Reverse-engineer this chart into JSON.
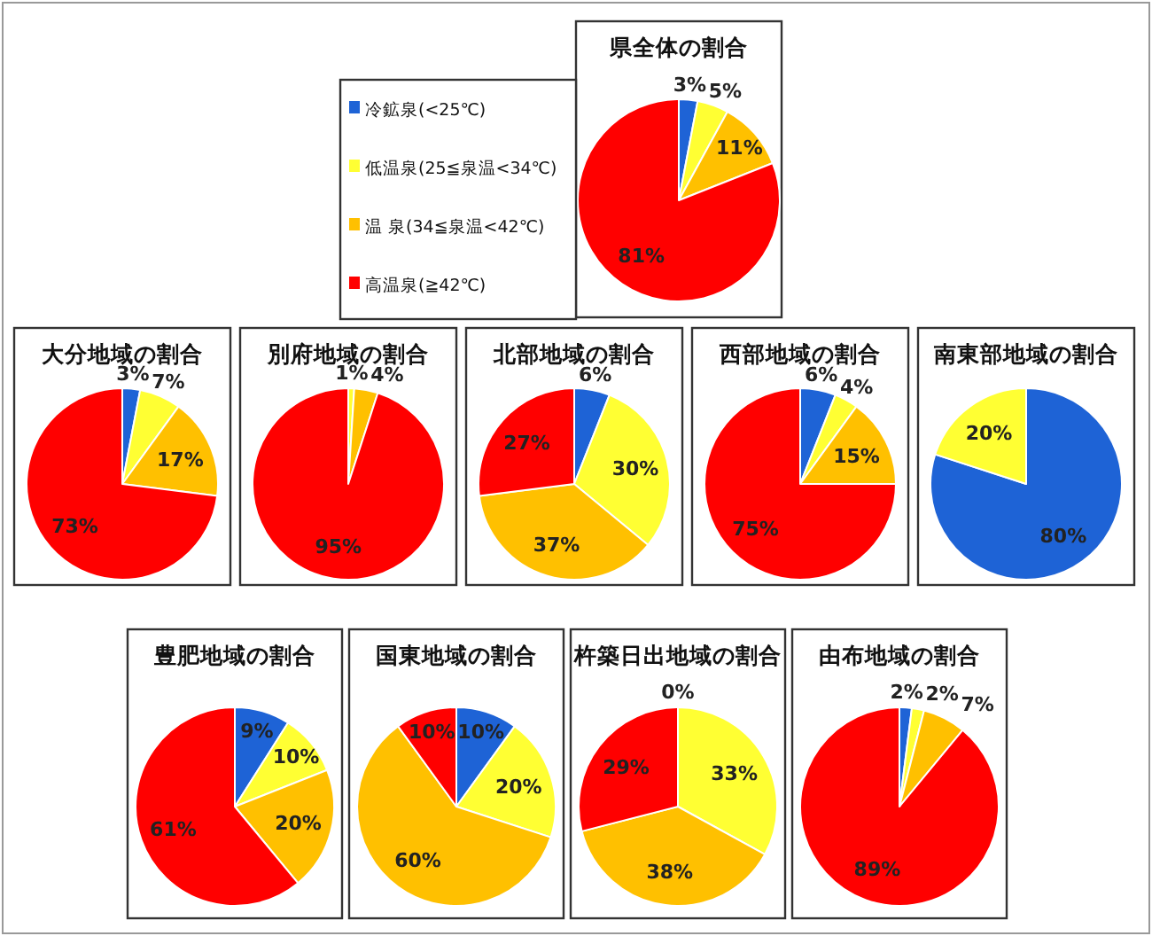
{
  "chart_data": [
    {
      "type": "pie",
      "title": "県全体の割合",
      "categories": [
        "冷鉱泉(<25℃)",
        "低温泉(25≦泉温<34℃)",
        "温 泉(34≦泉温<42℃)",
        "高温泉(≧42℃)"
      ],
      "values": [
        3,
        5,
        11,
        81
      ],
      "value_labels": [
        "3%",
        "5%",
        "11%",
        "81%"
      ],
      "colors": [
        "#1e63d6",
        "#ffff33",
        "#ffc000",
        "#ff0000"
      ],
      "legend": "left"
    },
    {
      "type": "pie",
      "title": "大分地域の割合",
      "values": [
        3,
        7,
        17,
        73
      ],
      "value_labels": [
        "3%",
        "7%",
        "17%",
        "73%"
      ],
      "colors": [
        "#1e63d6",
        "#ffff33",
        "#ffc000",
        "#ff0000"
      ]
    },
    {
      "type": "pie",
      "title": "別府地域の割合",
      "values": [
        1,
        4,
        95
      ],
      "value_labels": [
        "1%",
        "4%",
        "95%"
      ],
      "colors": [
        "#ffff33",
        "#ffc000",
        "#ff0000"
      ]
    },
    {
      "type": "pie",
      "title": "北部地域の割合",
      "values": [
        6,
        30,
        37,
        27
      ],
      "value_labels": [
        "6%",
        "30%",
        "37%",
        "27%"
      ],
      "colors": [
        "#1e63d6",
        "#ffff33",
        "#ffc000",
        "#ff0000"
      ]
    },
    {
      "type": "pie",
      "title": "西部地域の割合",
      "values": [
        6,
        4,
        15,
        75
      ],
      "value_labels": [
        "6%",
        "4%",
        "15%",
        "75%"
      ],
      "colors": [
        "#1e63d6",
        "#ffff33",
        "#ffc000",
        "#ff0000"
      ]
    },
    {
      "type": "pie",
      "title": "南東部地域の割合",
      "values": [
        80,
        20
      ],
      "value_labels": [
        "80%",
        "20%"
      ],
      "colors": [
        "#1e63d6",
        "#ffff33"
      ]
    },
    {
      "type": "pie",
      "title": "豊肥地域の割合",
      "values": [
        9,
        10,
        20,
        61
      ],
      "value_labels": [
        "9%",
        "10%",
        "20%",
        "61%"
      ],
      "colors": [
        "#1e63d6",
        "#ffff33",
        "#ffc000",
        "#ff0000"
      ]
    },
    {
      "type": "pie",
      "title": "国東地域の割合",
      "values": [
        10,
        20,
        60,
        10
      ],
      "value_labels": [
        "10%",
        "20%",
        "60%",
        "10%"
      ],
      "colors": [
        "#1e63d6",
        "#ffff33",
        "#ffc000",
        "#ff0000"
      ]
    },
    {
      "type": "pie",
      "title": "杵築日出地域の割合",
      "values": [
        0,
        33,
        38,
        29
      ],
      "value_labels": [
        "0%",
        "33%",
        "38%",
        "29%"
      ],
      "colors": [
        "#1e63d6",
        "#ffff33",
        "#ffc000",
        "#ff0000"
      ]
    },
    {
      "type": "pie",
      "title": "由布地域の割合",
      "values": [
        2,
        2,
        7,
        89
      ],
      "value_labels": [
        "2%",
        "2%",
        "7%",
        "89%"
      ],
      "colors": [
        "#1e63d6",
        "#ffff33",
        "#ffc000",
        "#ff0000"
      ]
    }
  ]
}
